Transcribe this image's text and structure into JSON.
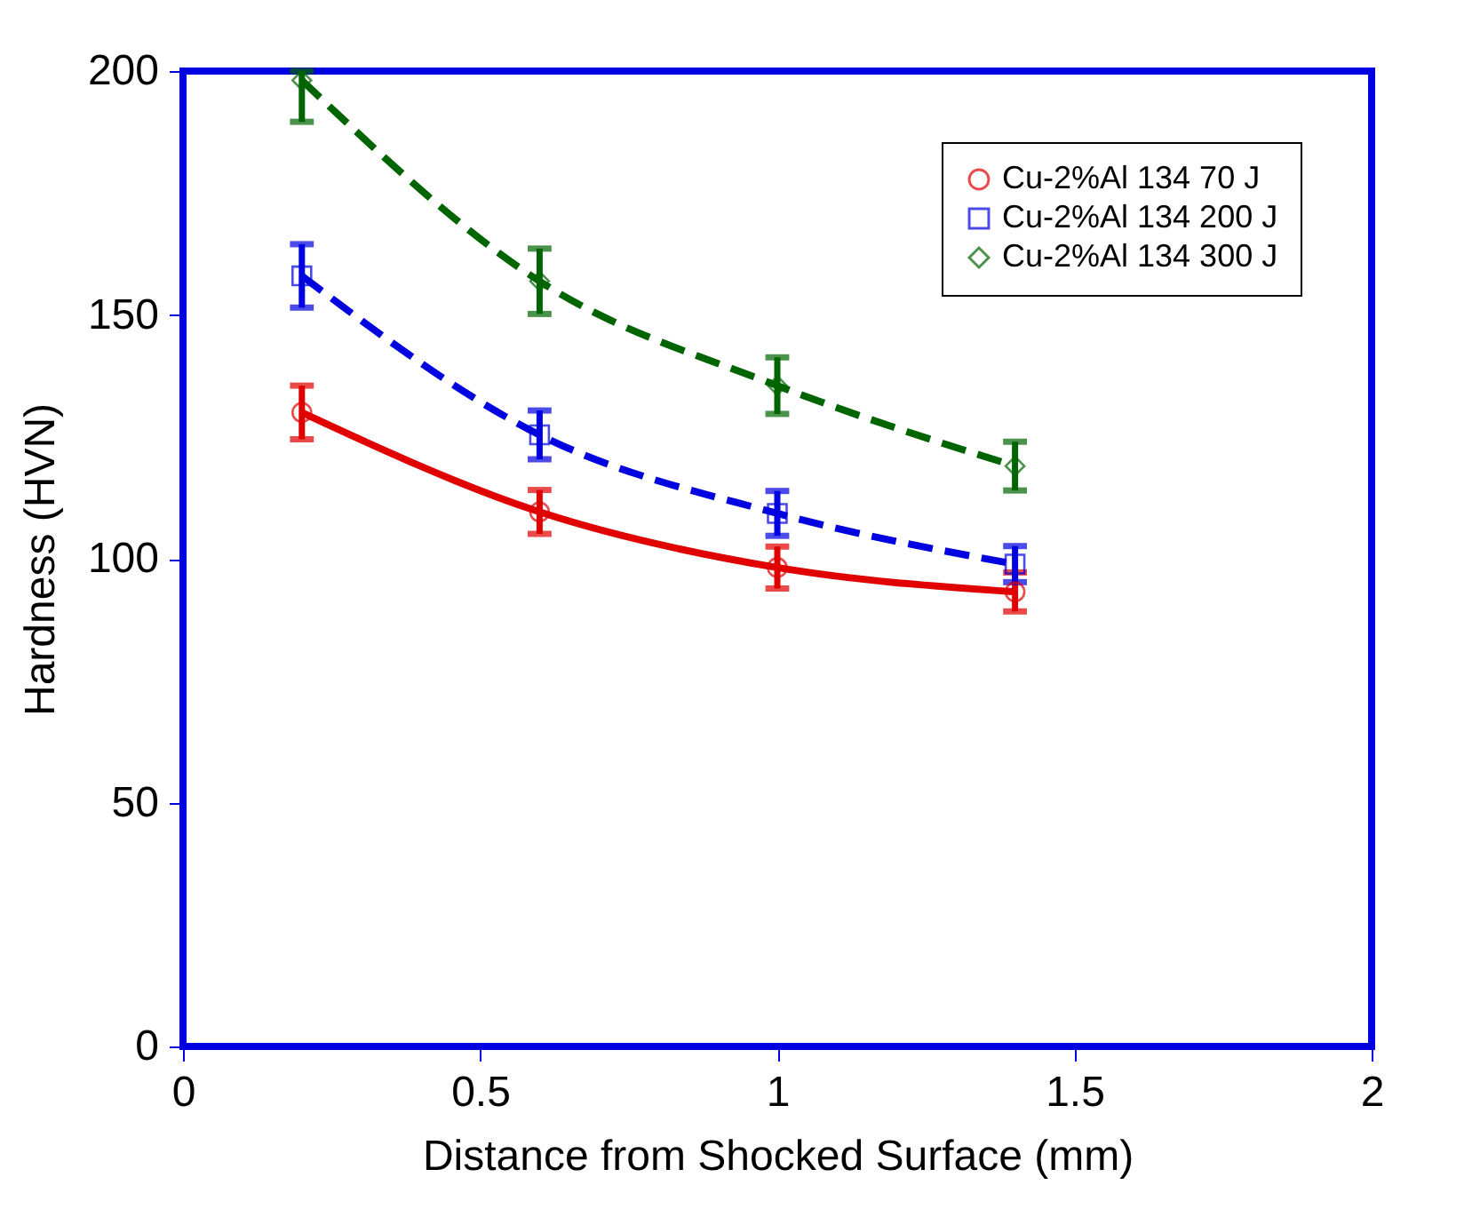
{
  "chart_data": {
    "type": "line",
    "xlabel": "Distance from Shocked Surface (mm)",
    "ylabel": "Hardness (HVN)",
    "x": [
      0.2,
      0.6,
      1.0,
      1.4
    ],
    "xlim": [
      0,
      2
    ],
    "xticks": [
      0,
      0.5,
      1,
      1.5,
      2
    ],
    "ylim": [
      0,
      200
    ],
    "yticks": [
      0,
      50,
      100,
      150,
      200
    ],
    "grid": false,
    "legend": "top right",
    "series": [
      {
        "name": "Cu-2%Al 134 70 J",
        "color": "#e00000",
        "marker": "circle",
        "line_style": "solid",
        "values": [
          130,
          109.6,
          98.2,
          93.2
        ],
        "errors": [
          5.5,
          4.5,
          4.3,
          4
        ]
      },
      {
        "name": "Cu-2%Al 134 200 J",
        "color": "#0000e0",
        "marker": "square",
        "line_style": "dashed",
        "values": [
          158,
          125.4,
          109.3,
          98.9
        ],
        "errors": [
          6.5,
          5,
          4.6,
          3.7
        ]
      },
      {
        "name": "Cu-2%Al 134 300 J",
        "color": "#006400",
        "marker": "diamond",
        "line_style": "dashed",
        "values": [
          198.1,
          156.9,
          135.5,
          119
        ],
        "errors": [
          [
            189.6,
            200
          ],
          6.7,
          5.8,
          5
        ]
      }
    ]
  }
}
